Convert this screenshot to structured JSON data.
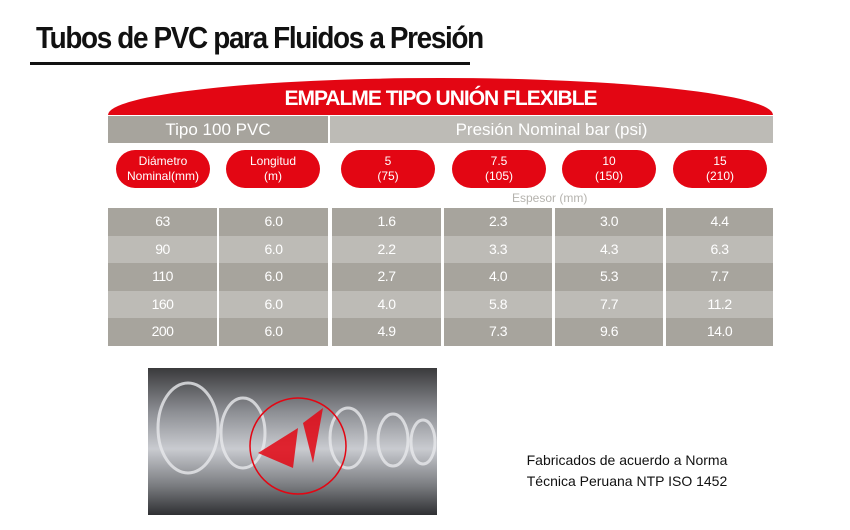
{
  "title": "Tubos de PVC para Fluidos a Presión",
  "banner": "EMPALME TIPO UNIÓN FLEXIBLE",
  "group_headers": {
    "left": "Tipo 100 PVC",
    "right": "Presión Nominal bar (psi)"
  },
  "columns": [
    {
      "line1": "Diámetro",
      "line2": "Nominal(mm)"
    },
    {
      "line1": "Longitud",
      "line2": "(m)"
    },
    {
      "line1": "5",
      "line2": "(75)"
    },
    {
      "line1": "7.5",
      "line2": "(105)"
    },
    {
      "line1": "10",
      "line2": "(150)"
    },
    {
      "line1": "15",
      "line2": "(210)"
    }
  ],
  "subheader": "Espesor (mm)",
  "rows": [
    [
      "63",
      "6.0",
      "1.6",
      "2.3",
      "3.0",
      "4.4"
    ],
    [
      "90",
      "6.0",
      "2.2",
      "3.3",
      "4.3",
      "6.3"
    ],
    [
      "110",
      "6.0",
      "2.7",
      "4.0",
      "5.3",
      "7.7"
    ],
    [
      "160",
      "6.0",
      "4.0",
      "5.8",
      "7.7",
      "11.2"
    ],
    [
      "200",
      "6.0",
      "4.9",
      "7.3",
      "9.6",
      "14.0"
    ]
  ],
  "note": {
    "line1": "Fabricados de acuerdo a Norma",
    "line2": "Técnica Peruana NTP ISO 1452"
  },
  "colors": {
    "accent": "#e30613",
    "cell_dark": "#a7a49d",
    "cell_light": "#bdbbb6"
  }
}
